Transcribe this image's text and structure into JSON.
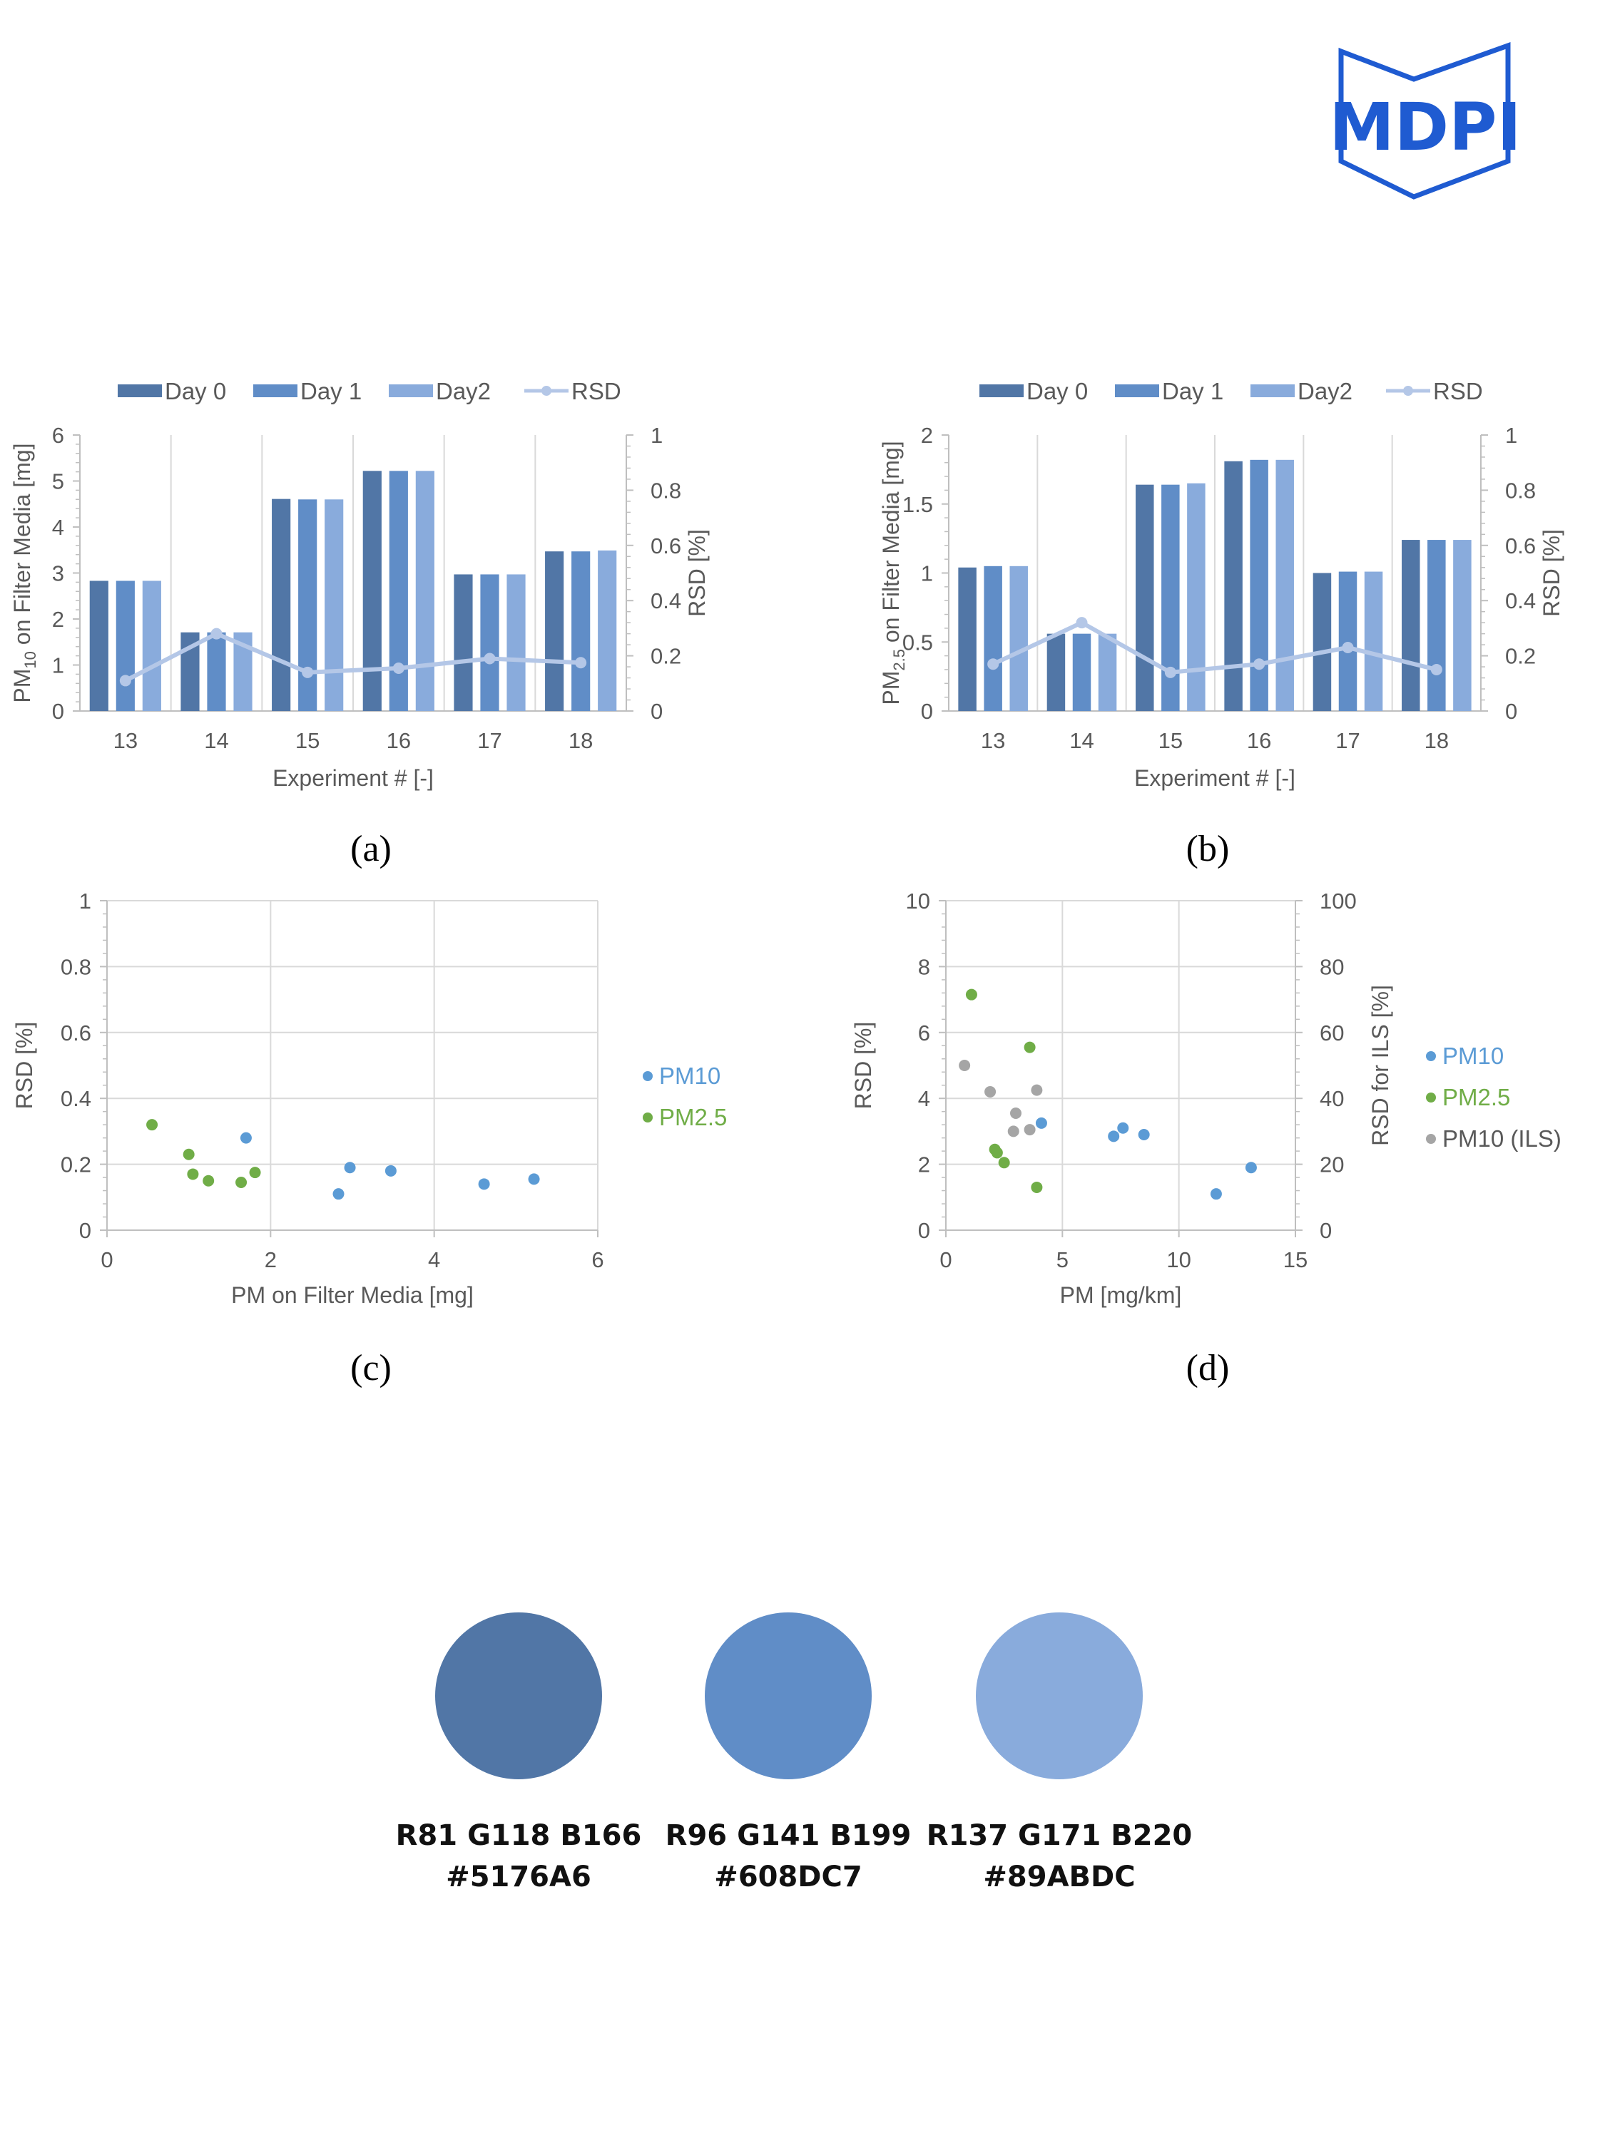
{
  "logo": {
    "text": "MDPI",
    "color": "#1f5bd1"
  },
  "colors": {
    "day0": "#5176A6",
    "day1": "#608DC7",
    "day2": "#89ABDC",
    "rsd": "#b4c7e7",
    "pm10": "#5b9bd5",
    "pm25": "#70ad47",
    "ils": "#a5a5a5",
    "grid": "#d9d9d9",
    "axis": "#bfbfbf"
  },
  "chart_data": [
    {
      "id": "a",
      "type": "bar",
      "panel_label": "(a)",
      "categories": [
        "13",
        "14",
        "15",
        "16",
        "17",
        "18"
      ],
      "series": [
        {
          "name": "Day 0",
          "values": [
            2.83,
            1.71,
            4.61,
            5.22,
            2.97,
            3.47
          ]
        },
        {
          "name": "Day 1",
          "values": [
            2.83,
            1.71,
            4.6,
            5.22,
            2.97,
            3.47
          ]
        },
        {
          "name": "Day2",
          "values": [
            2.83,
            1.71,
            4.6,
            5.22,
            2.97,
            3.49
          ]
        }
      ],
      "line_series": {
        "name": "RSD",
        "axis": "right",
        "values": [
          0.11,
          0.28,
          0.14,
          0.155,
          0.19,
          0.175
        ]
      },
      "xlabel": "Experiment  # [-]",
      "ylabel": "PM10 on Filter Media [mg]",
      "ylabel_main": "PM",
      "ylabel_sub": "10",
      "ylabel_rest": " on Filter Media [mg]",
      "y2label": "RSD [%]",
      "ylim": [
        0,
        6
      ],
      "yticks": [
        "0",
        "1",
        "2",
        "3",
        "4",
        "5",
        "6"
      ],
      "y2lim": [
        0,
        1
      ],
      "y2ticks": [
        "0",
        "0.2",
        "0.4",
        "0.6",
        "0.8",
        "1"
      ],
      "legend": [
        "Day 0",
        "Day 1",
        "Day2",
        "RSD"
      ]
    },
    {
      "id": "b",
      "type": "bar",
      "panel_label": "(b)",
      "categories": [
        "13",
        "14",
        "15",
        "16",
        "17",
        "18"
      ],
      "series": [
        {
          "name": "Day 0",
          "values": [
            1.04,
            0.56,
            1.64,
            1.81,
            1.0,
            1.24
          ]
        },
        {
          "name": "Day 1",
          "values": [
            1.05,
            0.56,
            1.64,
            1.82,
            1.01,
            1.24
          ]
        },
        {
          "name": "Day2",
          "values": [
            1.05,
            0.56,
            1.65,
            1.82,
            1.01,
            1.24
          ]
        }
      ],
      "line_series": {
        "name": "RSD",
        "axis": "right",
        "values": [
          0.17,
          0.32,
          0.14,
          0.17,
          0.23,
          0.15
        ]
      },
      "xlabel": "Experiment  # [-]",
      "ylabel": "PM2.5 on Filter Media [mg]",
      "ylabel_main": "PM",
      "ylabel_sub": "2.5",
      "ylabel_rest": " on Filter Media [mg]",
      "y2label": "RSD [%]",
      "ylim": [
        0,
        2
      ],
      "yticks": [
        "0",
        "0.5",
        "1",
        "1.5",
        "2"
      ],
      "y2lim": [
        0,
        1
      ],
      "y2ticks": [
        "0",
        "0.2",
        "0.4",
        "0.6",
        "0.8",
        "1"
      ],
      "legend": [
        "Day 0",
        "Day 1",
        "Day2",
        "RSD"
      ]
    },
    {
      "id": "c",
      "type": "scatter",
      "panel_label": "(c)",
      "xlabel": "PM on Filter Media [mg]",
      "ylabel": "RSD [%]",
      "xlim": [
        0,
        6
      ],
      "xticks": [
        "0",
        "2",
        "4",
        "6"
      ],
      "ylim": [
        0,
        1
      ],
      "yticks": [
        "0",
        "0.2",
        "0.4",
        "0.6",
        "0.8",
        "1"
      ],
      "series": [
        {
          "name": "PM10",
          "points": [
            [
              1.7,
              0.28
            ],
            [
              2.83,
              0.11
            ],
            [
              2.97,
              0.19
            ],
            [
              3.47,
              0.18
            ],
            [
              4.61,
              0.14
            ],
            [
              5.22,
              0.155
            ]
          ]
        },
        {
          "name": "PM2.5",
          "points": [
            [
              0.55,
              0.32
            ],
            [
              1.0,
              0.23
            ],
            [
              1.05,
              0.17
            ],
            [
              1.24,
              0.15
            ],
            [
              1.64,
              0.145
            ],
            [
              1.81,
              0.175
            ]
          ]
        }
      ],
      "legend": [
        "PM10",
        "PM2.5"
      ]
    },
    {
      "id": "d",
      "type": "scatter",
      "panel_label": "(d)",
      "xlabel": "PM [mg/km]",
      "ylabel": "RSD [%]",
      "y2label": "RSD for ILS [%]",
      "xlim": [
        0,
        15
      ],
      "xticks": [
        "0",
        "5",
        "10",
        "15"
      ],
      "ylim": [
        0,
        10
      ],
      "yticks": [
        "0",
        "2",
        "4",
        "6",
        "8",
        "10"
      ],
      "y2lim": [
        0,
        100
      ],
      "y2ticks": [
        "0",
        "20",
        "40",
        "60",
        "80",
        "100"
      ],
      "series": [
        {
          "name": "PM10",
          "axis": "left",
          "points": [
            [
              4.1,
              3.25
            ],
            [
              7.2,
              2.85
            ],
            [
              7.6,
              3.1
            ],
            [
              8.5,
              2.9
            ],
            [
              11.6,
              1.1
            ],
            [
              13.1,
              1.9
            ]
          ]
        },
        {
          "name": "PM2.5",
          "axis": "left",
          "points": [
            [
              1.1,
              7.15
            ],
            [
              2.1,
              2.45
            ],
            [
              2.2,
              2.35
            ],
            [
              2.5,
              2.05
            ],
            [
              3.6,
              5.55
            ],
            [
              3.9,
              1.3
            ]
          ]
        },
        {
          "name": "PM10 (ILS)",
          "axis": "right",
          "points": [
            [
              0.8,
              50
            ],
            [
              1.9,
              42
            ],
            [
              2.9,
              30
            ],
            [
              3.0,
              35.5
            ],
            [
              3.6,
              30.5
            ],
            [
              3.9,
              42.5
            ]
          ]
        }
      ],
      "legend": [
        "PM10",
        "PM2.5",
        "PM10 (ILS)"
      ]
    }
  ],
  "swatches": [
    {
      "rgb": "R81 G118 B166",
      "hex": "#5176A6"
    },
    {
      "rgb": "R96 G141 B199",
      "hex": "#608DC7"
    },
    {
      "rgb": "R137 G171 B220",
      "hex": "#89ABDC"
    }
  ]
}
